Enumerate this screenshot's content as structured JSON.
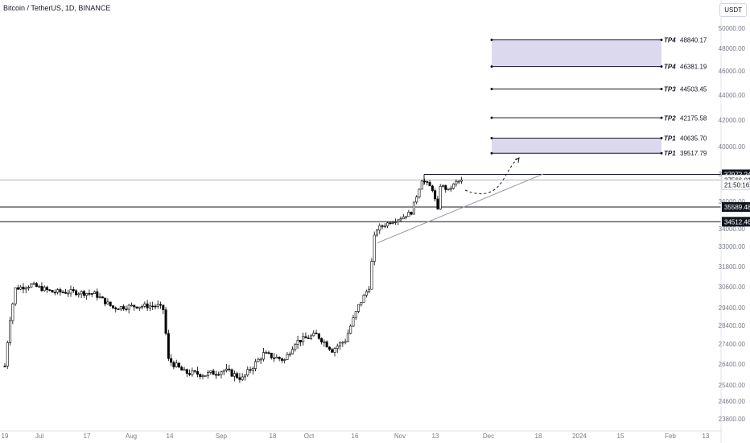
{
  "header": {
    "title": "Bitcoin / TetherUS, 1D, BINANCE",
    "currency": "USDT"
  },
  "chart_data": {
    "type": "candlestick",
    "title": "Bitcoin / TetherUS, 1D, BINANCE",
    "ylim": [
      23400,
      51000
    ],
    "y_ticks": [
      "23800.00",
      "24600.00",
      "25400.00",
      "26400.00",
      "27400.00",
      "28400.00",
      "29400.00",
      "30600.00",
      "31800.00",
      "33000.00",
      "34000.00",
      "36000.00",
      "38000.00",
      "40000.00",
      "42000.00",
      "44000.00",
      "46000.00",
      "48000.00",
      "50000.00"
    ],
    "x_ticks": [
      "19",
      "Jul",
      "17",
      "Aug",
      "14",
      "Sep",
      "18",
      "Oct",
      "16",
      "Nov",
      "13",
      "Dec",
      "18",
      "2024",
      "15",
      "Feb",
      "13"
    ],
    "price_labels": [
      {
        "text": "37972.24",
        "value": 37972.24,
        "style": "dark"
      },
      {
        "text": "37566.01",
        "value": 37566.01,
        "style": "light"
      },
      {
        "text": "21:50:16",
        "value": 37200,
        "style": "light"
      },
      {
        "text": "35589.48",
        "value": 35589.48,
        "style": "dark"
      },
      {
        "text": "34512.46",
        "value": 34512.46,
        "style": "dark"
      }
    ],
    "targets": [
      {
        "label": "TP4",
        "value": 48840.17,
        "text": "48840.17"
      },
      {
        "label": "TP4",
        "value": 46381.19,
        "text": "46381.19"
      },
      {
        "label": "TP3",
        "value": 44503.45,
        "text": "44503.45"
      },
      {
        "label": "TP2",
        "value": 42175.58,
        "text": "42175.58"
      },
      {
        "label": "TP1",
        "value": 40635.7,
        "text": "40635.70"
      },
      {
        "label": "TP1",
        "value": 39517.79,
        "text": "39517.79"
      }
    ],
    "target_zones": [
      [
        46381.19,
        48840.17
      ],
      [
        39517.79,
        40635.7
      ]
    ],
    "horizontal_levels": [
      37972.24,
      37566.01,
      35589.48,
      34512.46
    ],
    "trendline": [
      [
        33200,
        38000
      ]
    ],
    "anchors": {
      "start": "2023-06-19",
      "first_close": 26300
    },
    "colors": {
      "up": "#ffffff",
      "down": "#000000",
      "zone": "#dcd9ef",
      "line": "#131722"
    }
  }
}
